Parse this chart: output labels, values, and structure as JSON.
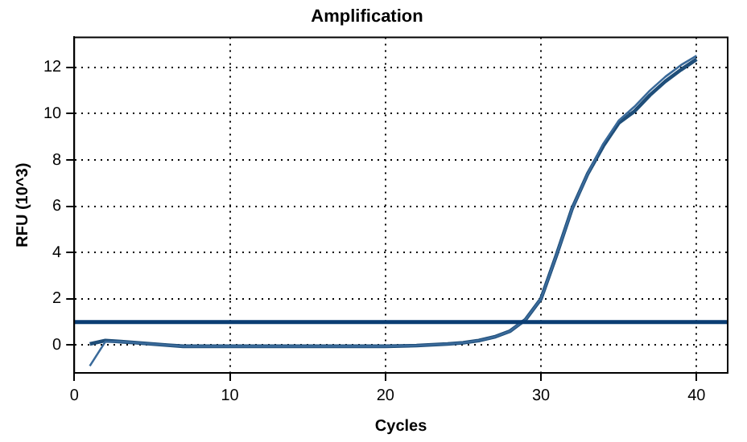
{
  "chart_data": {
    "type": "line",
    "title": "Amplification",
    "xlabel": "Cycles",
    "ylabel": "RFU (10^3)",
    "x": [
      1,
      2,
      3,
      4,
      5,
      6,
      7,
      8,
      10,
      12,
      14,
      16,
      18,
      20,
      22,
      24,
      25,
      26,
      27,
      28,
      29,
      30,
      31,
      32,
      33,
      34,
      35,
      36,
      37,
      38,
      39,
      40
    ],
    "series": [
      {
        "color": "#3a6a9a",
        "values": [
          -0.9,
          0.15,
          0.15,
          0.1,
          0.05,
          0,
          -0.05,
          -0.05,
          -0.05,
          -0.05,
          -0.05,
          -0.05,
          -0.05,
          -0.05,
          -0.02,
          0.05,
          0.1,
          0.2,
          0.35,
          0.6,
          1.1,
          2.0,
          3.9,
          5.9,
          7.4,
          8.7,
          9.7,
          10.3,
          11.0,
          11.6,
          12.1,
          12.5
        ]
      },
      {
        "color": "#1f4e79",
        "values": [
          0.05,
          0.2,
          0.15,
          0.1,
          0.05,
          0,
          -0.05,
          -0.05,
          -0.05,
          -0.05,
          -0.05,
          -0.05,
          -0.05,
          -0.05,
          -0.02,
          0.05,
          0.1,
          0.2,
          0.35,
          0.6,
          1.1,
          2.0,
          3.9,
          5.9,
          7.4,
          8.6,
          9.6,
          10.1,
          10.8,
          11.4,
          11.9,
          12.35
        ]
      }
    ],
    "ref_lines": [
      {
        "axis": "y",
        "value": 1,
        "color": "#0a3d73"
      }
    ],
    "xlim": [
      0,
      42
    ],
    "xticks": [
      0,
      10,
      20,
      30,
      40
    ],
    "ylim": [
      -1.2,
      13.3
    ],
    "yticks": [
      0,
      2,
      4,
      6,
      8,
      10,
      12
    ],
    "grid": true,
    "legend": false,
    "marker": "none",
    "line_style": "solid"
  }
}
